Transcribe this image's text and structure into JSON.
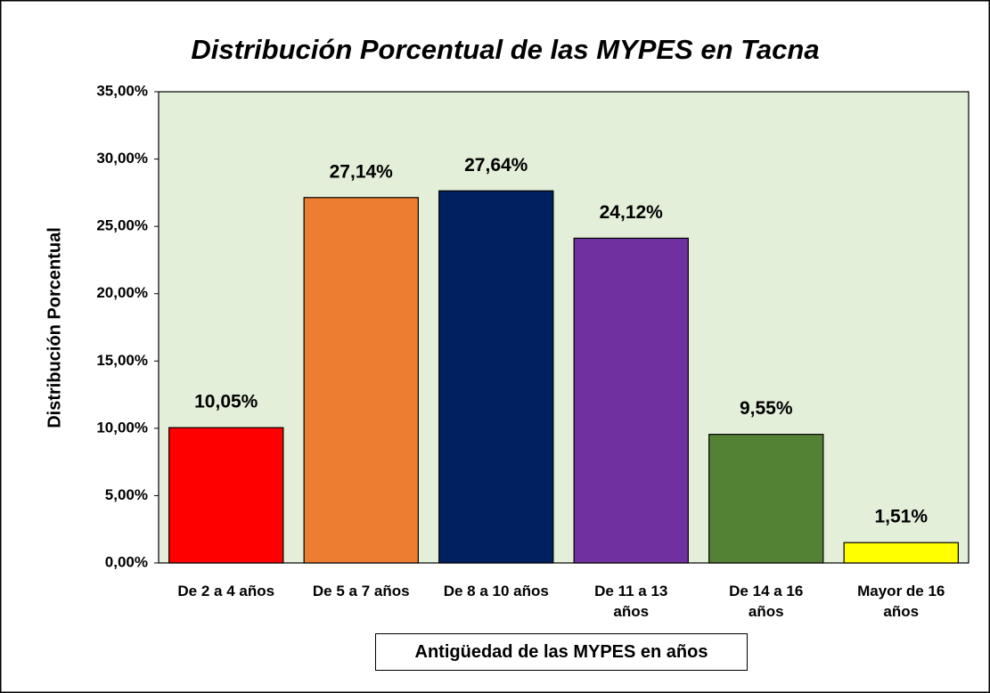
{
  "chart_data": {
    "type": "bar",
    "title": "Distribución Porcentual de las MYPES en Tacna",
    "y_label": "Distribución Porcentual",
    "x_label": "Antigüedad de las MYPES en años",
    "categories": [
      "De 2 a 4 años",
      "De 5 a 7 años",
      "De 8 a 10 años",
      "De 11 a 13 años",
      "De 14 a 16 años",
      "Mayor de 16 años"
    ],
    "values": [
      10.05,
      27.14,
      27.64,
      24.12,
      9.55,
      1.51
    ],
    "value_labels": [
      "10,05%",
      "27,14%",
      "27,64%",
      "24,12%",
      "9,55%",
      "1,51%"
    ],
    "colors": [
      "#ff0000",
      "#ed7d31",
      "#002060",
      "#7030a0",
      "#548235",
      "#ffff00"
    ],
    "ylim": [
      0,
      35
    ],
    "yticks": [
      {
        "value": 0,
        "label": "0,00%"
      },
      {
        "value": 5,
        "label": "5,00%"
      },
      {
        "value": 10,
        "label": "10,00%"
      },
      {
        "value": 15,
        "label": "15,00%"
      },
      {
        "value": 20,
        "label": "20,00%"
      },
      {
        "value": 25,
        "label": "25,00%"
      },
      {
        "value": 30,
        "label": "30,00%"
      },
      {
        "value": 35,
        "label": "35,00%"
      }
    ],
    "grid": false
  }
}
